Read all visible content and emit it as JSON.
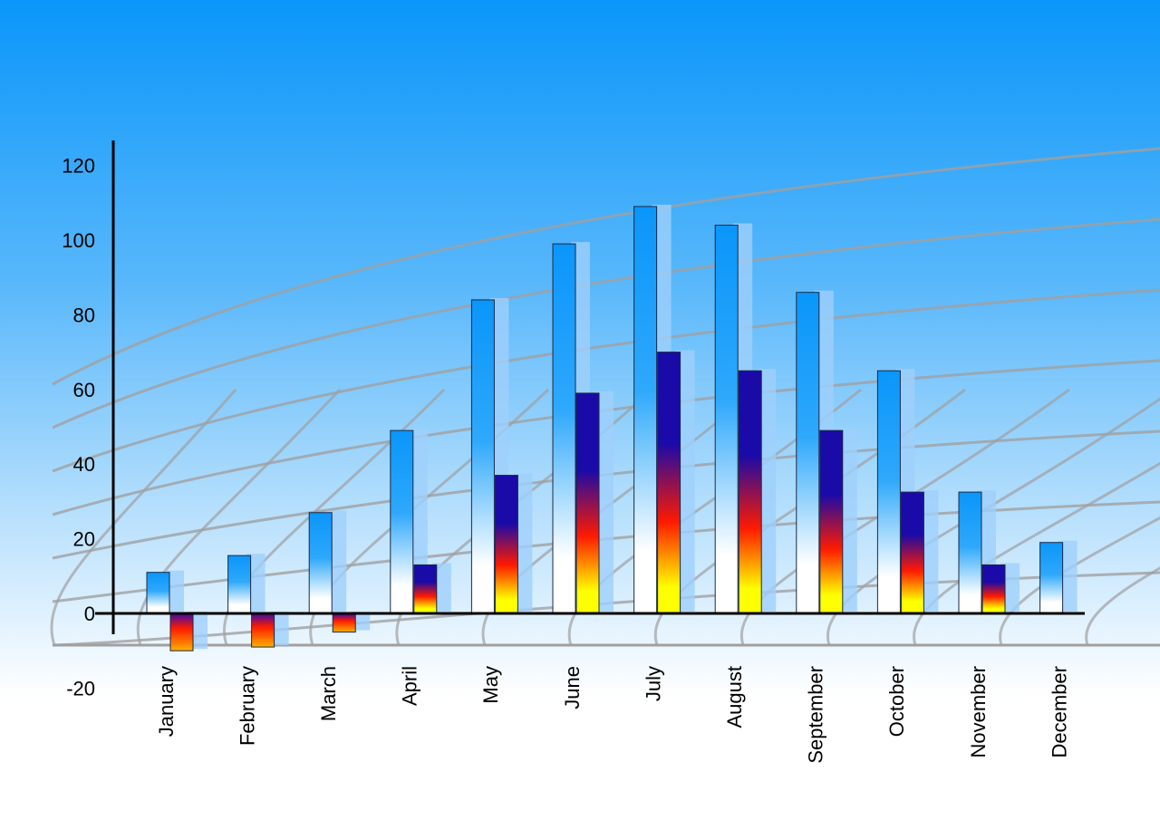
{
  "chart_data": {
    "type": "bar",
    "title": "",
    "xlabel": "",
    "ylabel": "",
    "ylim": [
      -20,
      120
    ],
    "yticks": [
      -20,
      0,
      20,
      40,
      60,
      80,
      100,
      120
    ],
    "grid": false,
    "categories": [
      "January",
      "February",
      "March",
      "April",
      "May",
      "June",
      "July",
      "August",
      "September",
      "October",
      "November",
      "December"
    ],
    "series": [
      {
        "values": [
          11,
          15.5,
          27,
          49,
          84,
          99,
          109,
          104,
          86,
          65,
          32.5,
          19
        ],
        "color": "#0a96fa"
      },
      {
        "values": [
          -10,
          -9,
          -5,
          13,
          37,
          59,
          70,
          65,
          49,
          32.5,
          13,
          null
        ],
        "color": "#1a0aa8"
      }
    ]
  }
}
